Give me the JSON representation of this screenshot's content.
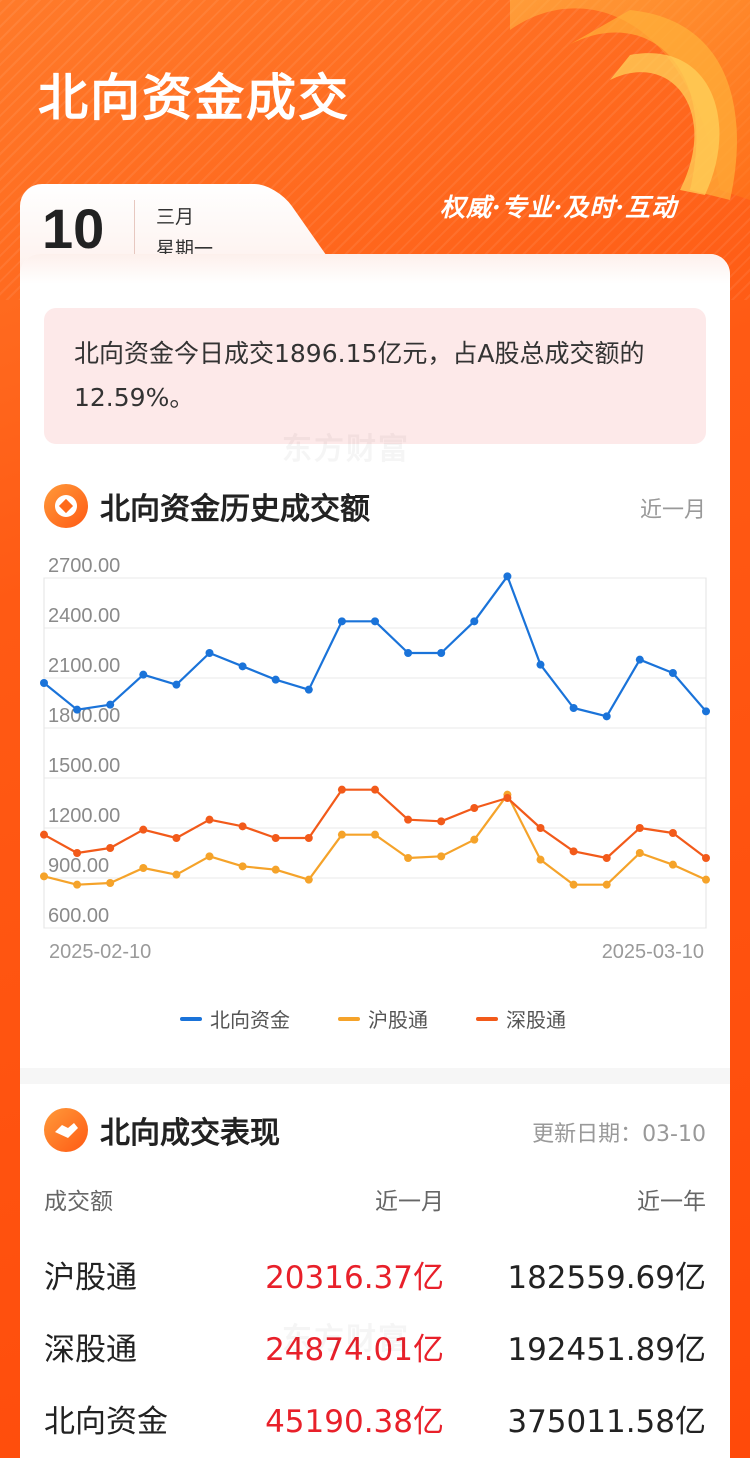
{
  "header": {
    "title": "北向资金成交",
    "slogan": "权威·专业·及时·互动",
    "date_day": "10",
    "date_month": "三月",
    "date_weekday": "星期一"
  },
  "summary": {
    "text": "北向资金今日成交1896.15亿元，占A股总成交额的12.59%。"
  },
  "watermark": "东方财富",
  "history_section": {
    "title": "北向资金历史成交额",
    "period": "近一月"
  },
  "colors": {
    "north": "#1a73d9",
    "sh": "#f5a32a",
    "sz": "#f25a1a",
    "accent": "#ff5a14",
    "red_value": "#e8202a"
  },
  "chart_data": {
    "type": "line",
    "x_start_label": "2025-02-10",
    "x_end_label": "2025-03-10",
    "y_ticks": [
      "2700.00",
      "2400.00",
      "2100.00",
      "1800.00",
      "1500.00",
      "1200.00",
      "900.00",
      "600.00"
    ],
    "ylim": [
      600,
      2700
    ],
    "grid": true,
    "legend_position": "bottom",
    "series": [
      {
        "name": "北向资金",
        "values": [
          2070,
          1910,
          1940,
          2120,
          2060,
          2250,
          2170,
          2090,
          2030,
          2440,
          2440,
          2250,
          2250,
          2440,
          2710,
          2180,
          1920,
          1870,
          2210,
          2130,
          1900
        ]
      },
      {
        "name": "沪股通",
        "values": [
          910,
          860,
          870,
          960,
          920,
          1030,
          970,
          950,
          890,
          1160,
          1160,
          1020,
          1030,
          1130,
          1400,
          1010,
          860,
          860,
          1050,
          980,
          890
        ]
      },
      {
        "name": "深股通",
        "values": [
          1160,
          1050,
          1080,
          1190,
          1140,
          1250,
          1210,
          1140,
          1140,
          1430,
          1430,
          1250,
          1240,
          1320,
          1380,
          1200,
          1060,
          1020,
          1200,
          1170,
          1020
        ]
      }
    ]
  },
  "performance_section": {
    "title": "北向成交表现",
    "update_label": "更新日期：03-10",
    "headers": [
      "成交额",
      "近一月",
      "近一年"
    ],
    "rows": [
      {
        "name": "沪股通",
        "month": "20316.37亿",
        "year": "182559.69亿"
      },
      {
        "name": "深股通",
        "month": "24874.01亿",
        "year": "192451.89亿"
      },
      {
        "name": "北向资金",
        "month": "45190.38亿",
        "year": "375011.58亿"
      }
    ]
  }
}
